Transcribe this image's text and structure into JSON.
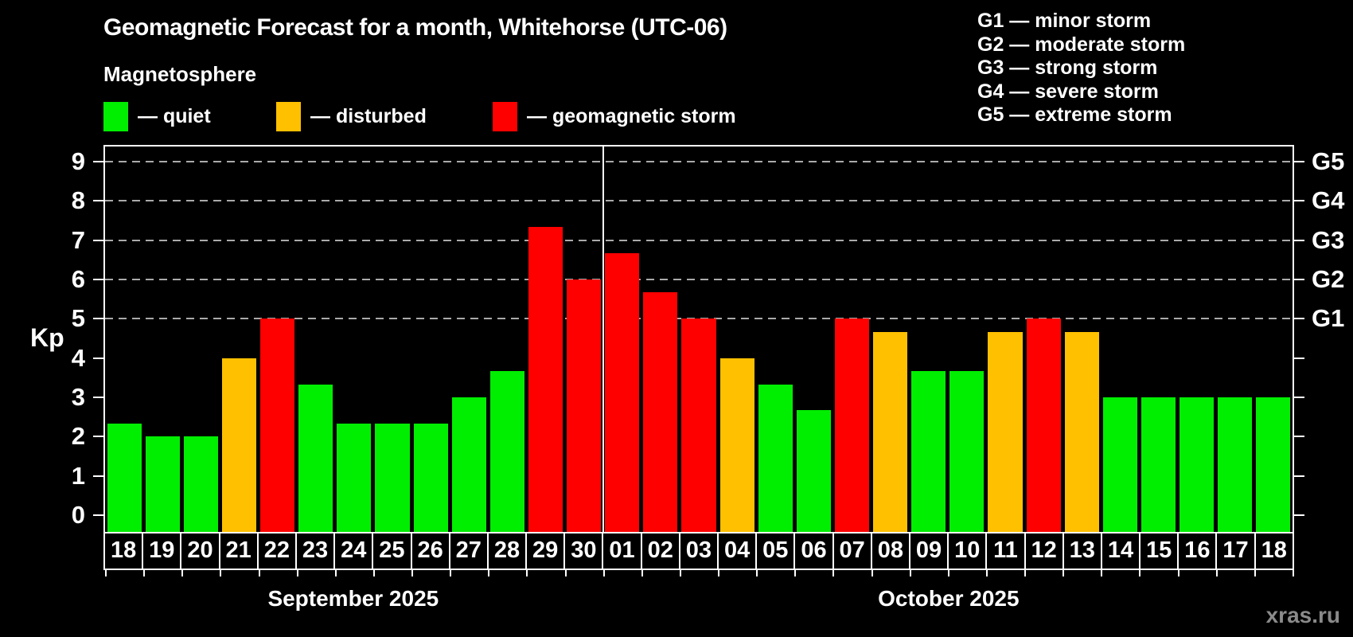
{
  "title": "Geomagnetic Forecast for a month, Whitehorse (UTC-06)",
  "legend": {
    "heading": "Magnetosphere",
    "items": [
      {
        "key": "quiet",
        "label": "— quiet",
        "color": "#00ee00"
      },
      {
        "key": "disturbed",
        "label": "— disturbed",
        "color": "#ffc000"
      },
      {
        "key": "storm",
        "label": "— geomagnetic storm",
        "color": "#ff0000"
      }
    ]
  },
  "g_scale_legend": [
    "G1 — minor storm",
    "G2 — moderate storm",
    "G3 — strong storm",
    "G4 — severe storm",
    "G5 — extreme storm"
  ],
  "axes": {
    "y_label": "Kp",
    "y_tick_labels": [
      "0",
      "1",
      "2",
      "3",
      "4",
      "5",
      "6",
      "7",
      "8",
      "9"
    ],
    "right_axis_labels": [
      {
        "value": 5,
        "label": "G1"
      },
      {
        "value": 6,
        "label": "G2"
      },
      {
        "value": 7,
        "label": "G3"
      },
      {
        "value": 8,
        "label": "G4"
      },
      {
        "value": 9,
        "label": "G5"
      }
    ]
  },
  "months": [
    {
      "label": "September 2025",
      "days": 13
    },
    {
      "label": "October 2025",
      "days": 18
    }
  ],
  "watermark": "xras.ru",
  "colors": {
    "background": "#000000",
    "grid": "#aaaaaa",
    "quiet": "#00ee00",
    "disturbed": "#ffc000",
    "storm": "#ff0000"
  },
  "chart_data": {
    "type": "bar",
    "title": "Geomagnetic Forecast for a month, Whitehorse (UTC-06)",
    "ylabel": "Kp",
    "ylim": [
      0,
      9
    ],
    "gridlines": [
      5,
      6,
      7,
      8,
      9
    ],
    "legend_position": "top-left",
    "categories": [
      "18",
      "19",
      "20",
      "21",
      "22",
      "23",
      "24",
      "25",
      "26",
      "27",
      "28",
      "29",
      "30",
      "01",
      "02",
      "03",
      "04",
      "05",
      "06",
      "07",
      "08",
      "09",
      "10",
      "11",
      "12",
      "13",
      "14",
      "15",
      "16",
      "17",
      "18"
    ],
    "values": [
      2.33,
      2.0,
      2.0,
      4.0,
      5.0,
      3.33,
      2.33,
      2.33,
      2.33,
      3.0,
      3.67,
      7.33,
      6.0,
      6.67,
      5.67,
      5.0,
      4.0,
      3.33,
      2.67,
      5.0,
      4.67,
      3.67,
      3.67,
      4.67,
      5.0,
      4.67,
      3.0,
      3.0,
      3.0,
      3.0,
      3.0
    ],
    "statuses": [
      "quiet",
      "quiet",
      "quiet",
      "disturbed",
      "storm",
      "quiet",
      "quiet",
      "quiet",
      "quiet",
      "quiet",
      "quiet",
      "storm",
      "storm",
      "storm",
      "storm",
      "storm",
      "disturbed",
      "quiet",
      "quiet",
      "storm",
      "disturbed",
      "quiet",
      "quiet",
      "disturbed",
      "storm",
      "disturbed",
      "quiet",
      "quiet",
      "quiet",
      "quiet",
      "quiet"
    ]
  }
}
